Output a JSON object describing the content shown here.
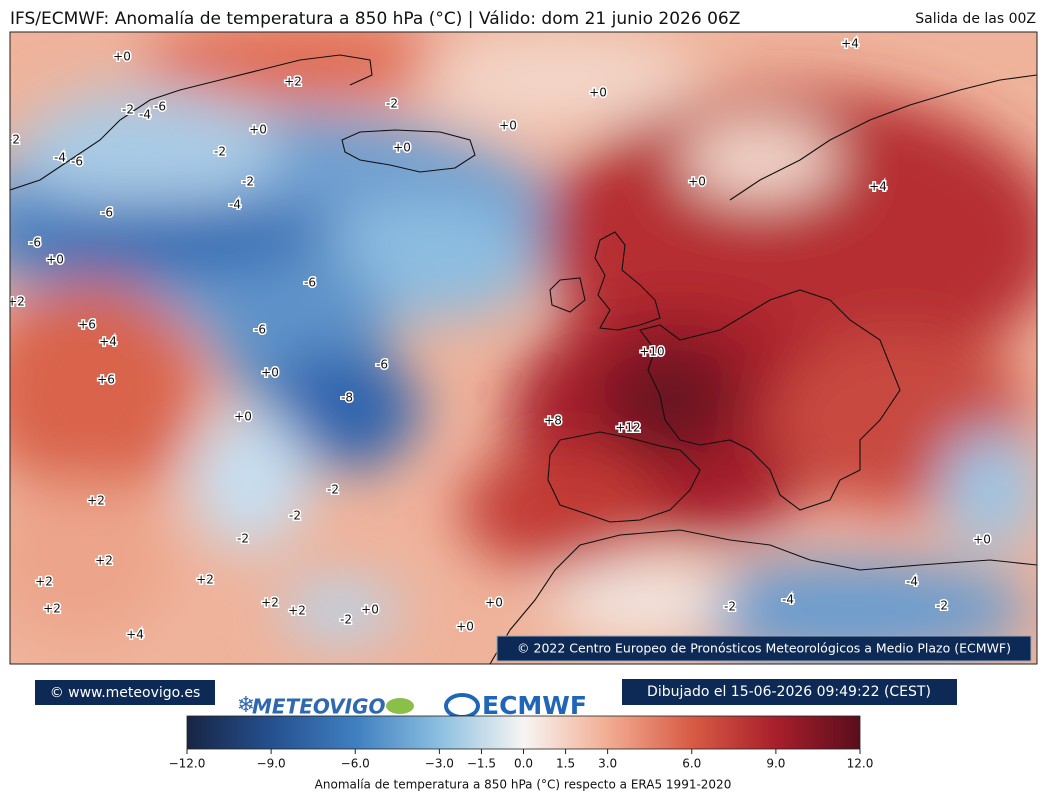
{
  "header": {
    "title": "IFS/ECMWF: Anomalía de temperatura a 850 hPa (°C) | Válido: dom 21 junio 2026 06Z",
    "run": "Salida de las 00Z"
  },
  "map": {
    "copyright": "© 2022 Centro Europeo de Pronósticos Meteorológicos a Medio Plazo (ECMWF)",
    "contour_labels": [
      "+0",
      "+2",
      "-6",
      "-4",
      "-2",
      "-2",
      "+0",
      "+4",
      "+0",
      "+0",
      "-2",
      "-4",
      "-6",
      "-2",
      "+0",
      "-2",
      "+0",
      "+4",
      "-4",
      "-6",
      "-6",
      "+0",
      "+2",
      "-6",
      "+6",
      "+4",
      "-6",
      "+10",
      "+0",
      "-6",
      "+6",
      "-8",
      "+0",
      "+8",
      "+12",
      "-2",
      "+2",
      "-2",
      "-2",
      "+0",
      "+2",
      "+2",
      "+2",
      "+2",
      "-4",
      "+2",
      "+2",
      "+0",
      "-2",
      "-4",
      "-2",
      "-2",
      "+0",
      "+0",
      "+4"
    ]
  },
  "footer": {
    "website": "© www.meteovigo.es",
    "logo_left": "METEOVIGO",
    "logo_right": "ECMWF",
    "drawn": "Dibujado el 15-06-2026 09:49:22 (CEST)"
  },
  "colorbar": {
    "label": "Anomalía de temperatura a 850 hPa (°C) respecto a ERA5 1991-2020",
    "range": [
      -12,
      12
    ],
    "ticks": [
      {
        "value": -12,
        "label": "−12.0"
      },
      {
        "value": -9,
        "label": "−9.0"
      },
      {
        "value": -6,
        "label": "−6.0"
      },
      {
        "value": -3,
        "label": "−3.0"
      },
      {
        "value": -1.5,
        "label": "−1.5"
      },
      {
        "value": 0,
        "label": "0.0"
      },
      {
        "value": 1.5,
        "label": "1.5"
      },
      {
        "value": 3,
        "label": "3.0"
      },
      {
        "value": 6,
        "label": "6.0"
      },
      {
        "value": 9,
        "label": "9.0"
      },
      {
        "value": 12,
        "label": "12.0"
      }
    ]
  }
}
